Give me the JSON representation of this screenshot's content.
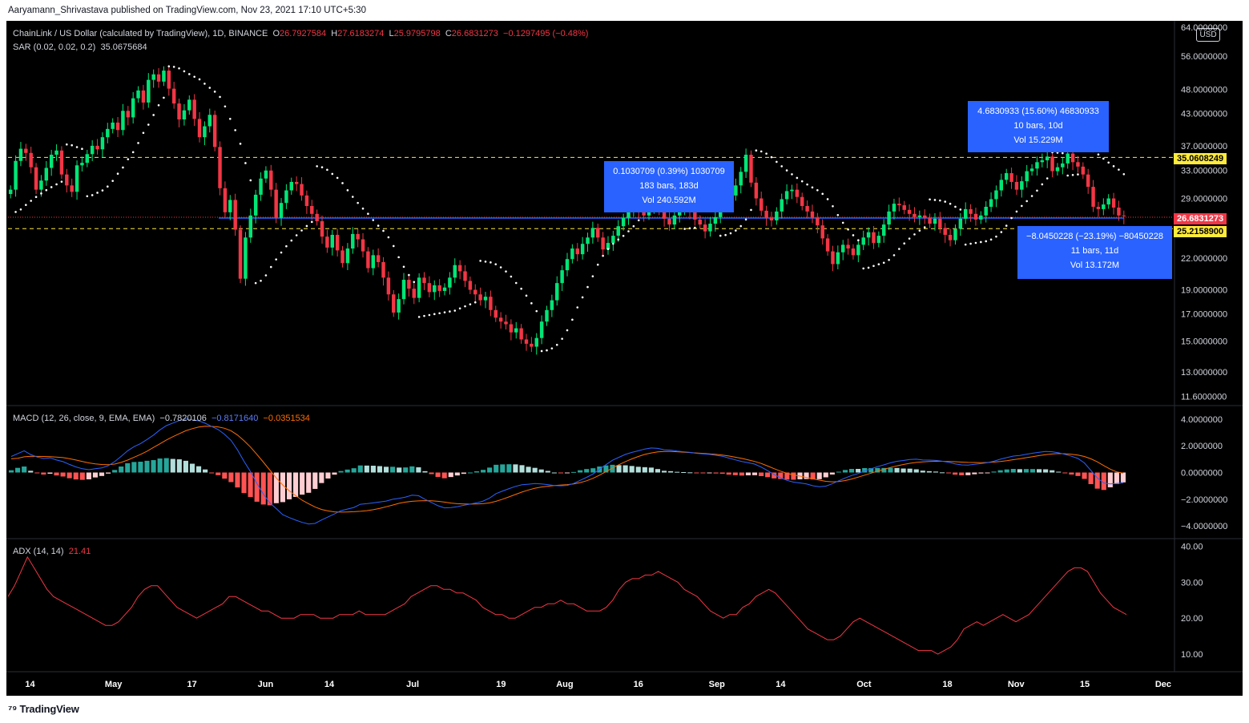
{
  "header": {
    "attribution": "Aaryamann_Shrivastava published on TradingView.com, Nov 23, 2021 17:10 UTC+5:30"
  },
  "legend": {
    "symbol": "ChainLink / US Dollar (calculated by TradingView), 1D, BINANCE",
    "open_label": "O",
    "open": "26.7927584",
    "high_label": "H",
    "high": "27.6183274",
    "low_label": "L",
    "low": "25.9795798",
    "close_label": "C",
    "close": "26.6831273",
    "change": "−0.1297495 (−0.48%)",
    "sar_label": "SAR (0.02, 0.02, 0.2)",
    "sar_value": "35.0675684",
    "macd_label": "MACD (12, 26, close, 9, EMA, EMA)",
    "macd_hist": "−0.7820106",
    "macd_line": "−0.8171640",
    "macd_signal": "−0.0351534",
    "adx_label": "ADX (14, 14)",
    "adx_value": "21.41"
  },
  "price_axis": {
    "currency": "USD",
    "ticks": [
      "64.0000000",
      "56.0000000",
      "48.0000000",
      "43.0000000",
      "37.0000000",
      "33.0000000",
      "29.0000000",
      "22.0000000",
      "19.0000000",
      "17.0000000",
      "15.0000000",
      "13.0000000",
      "11.6000000"
    ],
    "tags": [
      {
        "text": "35.0608249",
        "bg": "#ffeb3b",
        "fg": "#000000"
      },
      {
        "text": "26.6831273",
        "bg": "#f23645",
        "fg": "#ffffff"
      },
      {
        "text": "25.2158900",
        "bg": "#ffeb3b",
        "fg": "#000000"
      }
    ]
  },
  "macd_axis": {
    "ticks": [
      "4.0000000",
      "2.0000000",
      "0.0000000",
      "−2.0000000",
      "−4.0000000"
    ]
  },
  "adx_axis": {
    "ticks": [
      "40.00",
      "30.00",
      "20.00",
      "10.00"
    ]
  },
  "time_axis": {
    "labels": [
      "14",
      "May",
      "17",
      "Jun",
      "14",
      "Jul",
      "19",
      "Aug",
      "16",
      "Sep",
      "14",
      "Oct",
      "18",
      "Nov",
      "15",
      "Dec"
    ]
  },
  "measures": [
    {
      "line1": "0.1030709 (0.39%) 1030709",
      "line2": "183 bars, 183d",
      "line3": "Vol 240.592M"
    },
    {
      "line1": "4.6830933 (15.60%) 46830933",
      "line2": "10 bars, 10d",
      "line3": "Vol 15.229M"
    },
    {
      "line1": "−8.0450228 (−23.19%) −80450228",
      "line2": "11 bars, 11d",
      "line3": "Vol 13.172M"
    }
  ],
  "footer": {
    "brand": "TradingView"
  },
  "colors": {
    "up": "#26a69a",
    "candle_up": "#00e676",
    "candle_down": "#f23645",
    "sar": "#ffffff",
    "macd": "#2962ff",
    "signal": "#ff6d00",
    "adx": "#f23645",
    "hline_yellow": "#ffeb3b",
    "hline_blue": "#2962ff"
  },
  "chart_data": [
    {
      "type": "candlestick",
      "title": "ChainLink / US Dollar (calculated by TradingView), 1D, BINANCE",
      "x_start": "2021-04-10",
      "x_end": "2021-11-23",
      "closes": [
        30.2,
        34.5,
        36.5,
        35.8,
        33.5,
        30.2,
        31.5,
        33.4,
        35.5,
        36.2,
        32.4,
        30.8,
        29.9,
        33.8,
        34.2,
        35.6,
        37.0,
        36.4,
        38.5,
        40.0,
        41.2,
        39.8,
        43.5,
        42.2,
        46.1,
        47.8,
        45.2,
        50.2,
        51.5,
        49.8,
        52.4,
        48.2,
        45.0,
        41.8,
        43.6,
        45.8,
        41.9,
        38.5,
        40.5,
        42.7,
        36.8,
        30.4,
        27.2,
        28.8,
        25.1,
        20.0,
        24.2,
        26.8,
        29.5,
        31.8,
        33.0,
        30.2,
        26.5,
        28.4,
        30.1,
        31.3,
        31.0,
        29.4,
        28.0,
        27.0,
        26.1,
        24.3,
        23.1,
        24.5,
        22.8,
        21.5,
        23.0,
        24.6,
        24.0,
        22.7,
        21.0,
        22.3,
        21.6,
        20.1,
        18.6,
        17.1,
        18.2,
        19.9,
        19.1,
        18.3,
        20.1,
        19.6,
        18.8,
        19.4,
        18.9,
        19.2,
        20.1,
        21.3,
        20.7,
        19.8,
        19.0,
        18.6,
        18.1,
        18.4,
        17.3,
        16.7,
        16.4,
        16.2,
        15.6,
        15.9,
        15.1,
        14.8,
        14.6,
        15.2,
        16.4,
        17.3,
        18.1,
        19.6,
        20.8,
        21.9,
        23.0,
        22.4,
        23.5,
        24.2,
        25.3,
        24.2,
        22.9,
        23.6,
        24.4,
        25.5,
        26.5,
        27.3,
        28.5,
        27.4,
        26.8,
        27.9,
        28.3,
        27.5,
        26.4,
        25.7,
        26.8,
        27.5,
        28.1,
        27.3,
        26.3,
        25.7,
        24.9,
        25.8,
        26.6,
        27.9,
        28.8,
        29.4,
        30.8,
        32.8,
        35.5,
        31.2,
        29.0,
        27.4,
        26.5,
        26.2,
        27.3,
        28.9,
        30.0,
        30.2,
        29.2,
        28.0,
        27.3,
        26.5,
        25.6,
        24.1,
        22.7,
        21.4,
        22.6,
        23.4,
        23.0,
        22.3,
        23.4,
        24.2,
        24.8,
        23.6,
        24.4,
        25.7,
        27.3,
        28.3,
        28.1,
        27.5,
        27.0,
        26.6,
        26.8,
        26.5,
        25.8,
        26.4,
        25.3,
        24.5,
        23.9,
        25.2,
        26.4,
        27.6,
        27.0,
        26.3,
        26.8,
        27.9,
        28.9,
        30.1,
        31.6,
        32.6,
        31.3,
        30.2,
        31.4,
        32.9,
        33.3,
        34.3,
        34.6,
        35.2,
        32.9,
        33.5,
        34.1,
        35.7,
        34.3,
        33.6,
        32.4,
        30.6,
        27.9,
        27.6,
        28.2,
        29.0,
        27.8,
        26.8,
        26.7
      ]
    },
    {
      "type": "bar",
      "title": "MACD (12, 26, close, 9, EMA, EMA)",
      "series": [
        {
          "name": "MACD",
          "values": [
            1.2,
            1.42,
            1.63,
            1.35,
            1.16,
            1.05,
            1.1,
            0.94,
            0.82,
            0.61,
            0.42,
            0.28,
            0.21,
            0.28,
            0.34,
            0.51,
            0.82,
            1.21,
            1.63,
            1.94,
            2.17,
            2.48,
            2.81,
            3.2,
            3.52,
            3.71,
            3.9,
            4.01,
            3.95,
            3.88,
            3.7,
            3.45,
            3.22,
            2.86,
            2.41,
            1.69,
            0.85,
            0.07,
            -0.83,
            -1.62,
            -2.28,
            -2.71,
            -3.16,
            -3.38,
            -3.57,
            -3.74,
            -3.86,
            -3.82,
            -3.56,
            -3.33,
            -3.11,
            -2.86,
            -2.74,
            -2.62,
            -2.38,
            -2.34,
            -2.28,
            -2.21,
            -2.14,
            -2.01,
            -1.94,
            -1.84,
            -1.7,
            -1.74,
            -2.01,
            -2.24,
            -2.49,
            -2.65,
            -2.63,
            -2.56,
            -2.46,
            -2.37,
            -2.27,
            -2.14,
            -1.91,
            -1.58,
            -1.39,
            -1.21,
            -1.04,
            -0.92,
            -0.88,
            -0.83,
            -0.86,
            -0.91,
            -0.98,
            -1.0,
            -0.97,
            -0.82,
            -0.59,
            -0.36,
            -0.11,
            0.25,
            0.59,
            0.92,
            1.14,
            1.36,
            1.51,
            1.63,
            1.76,
            1.84,
            1.81,
            1.71,
            1.68,
            1.61,
            1.56,
            1.51,
            1.44,
            1.4,
            1.36,
            1.29,
            1.22,
            1.08,
            0.95,
            0.83,
            0.74,
            0.63,
            0.41,
            0.14,
            -0.15,
            -0.39,
            -0.59,
            -0.72,
            -0.78,
            -0.86,
            -0.99,
            -1.07,
            -1.02,
            -0.85,
            -0.62,
            -0.41,
            -0.22,
            -0.08,
            0.13,
            0.28,
            0.44,
            0.58,
            0.73,
            0.84,
            0.9,
            0.98,
            1.0,
            0.94,
            0.93,
            0.91,
            0.85,
            0.77,
            0.65,
            0.57,
            0.56,
            0.62,
            0.67,
            0.74,
            0.85,
            1.0,
            1.12,
            1.23,
            1.28,
            1.37,
            1.45,
            1.52,
            1.58,
            1.56,
            1.48,
            1.36,
            1.22,
            1.05,
            0.72,
            0.16,
            -0.41,
            -0.79,
            -0.86,
            -0.82,
            -0.78
          ]
        },
        {
          "name": "Signal",
          "values": [
            1.03,
            1.07,
            1.18,
            1.22,
            1.21,
            1.2,
            1.19,
            1.16,
            1.12,
            1.04,
            0.94,
            0.83,
            0.72,
            0.65,
            0.6,
            0.59,
            0.63,
            0.76,
            0.93,
            1.15,
            1.36,
            1.6,
            1.88,
            2.15,
            2.44,
            2.69,
            2.91,
            3.13,
            3.29,
            3.41,
            3.47,
            3.46,
            3.42,
            3.32,
            3.13,
            2.81,
            2.39,
            1.91,
            1.36,
            0.78,
            0.18,
            -0.41,
            -0.94,
            -1.37,
            -1.74,
            -2.08,
            -2.34,
            -2.59,
            -2.77,
            -2.88,
            -2.95,
            -2.97,
            -2.96,
            -2.94,
            -2.91,
            -2.86,
            -2.79,
            -2.69,
            -2.57,
            -2.44,
            -2.31,
            -2.22,
            -2.16,
            -2.13,
            -2.11,
            -2.12,
            -2.16,
            -2.22,
            -2.29,
            -2.34,
            -2.36,
            -2.37,
            -2.36,
            -2.34,
            -2.28,
            -2.16,
            -2.0,
            -1.83,
            -1.65,
            -1.47,
            -1.31,
            -1.18,
            -1.09,
            -1.03,
            -0.98,
            -0.94,
            -0.91,
            -0.86,
            -0.76,
            -0.62,
            -0.43,
            -0.2,
            0.06,
            0.34,
            0.59,
            0.82,
            1.02,
            1.2,
            1.36,
            1.47,
            1.55,
            1.58,
            1.58,
            1.56,
            1.53,
            1.5,
            1.47,
            1.44,
            1.4,
            1.36,
            1.31,
            1.24,
            1.15,
            1.06,
            0.95,
            0.83,
            0.68,
            0.49,
            0.29,
            0.1,
            -0.06,
            -0.18,
            -0.27,
            -0.37,
            -0.47,
            -0.57,
            -0.66,
            -0.7,
            -0.68,
            -0.6,
            -0.49,
            -0.35,
            -0.2,
            -0.05,
            0.1,
            0.24,
            0.38,
            0.5,
            0.6,
            0.69,
            0.76,
            0.8,
            0.83,
            0.84,
            0.84,
            0.83,
            0.81,
            0.78,
            0.76,
            0.75,
            0.74,
            0.75,
            0.78,
            0.83,
            0.89,
            0.96,
            1.03,
            1.11,
            1.19,
            1.27,
            1.34,
            1.39,
            1.42,
            1.41,
            1.37,
            1.31,
            1.2,
            1.03,
            0.8,
            0.52,
            0.25,
            0.04,
            -0.04
          ]
        }
      ],
      "ylim": [
        -4.6,
        4.6
      ]
    },
    {
      "type": "line",
      "title": "ADX (14, 14)",
      "series": [
        {
          "name": "ADX",
          "values": [
            26,
            29,
            33,
            37,
            34,
            31,
            28,
            26,
            25,
            24,
            23,
            22,
            21,
            20,
            19,
            18,
            18,
            19,
            21,
            23,
            26,
            28,
            29,
            29,
            27,
            25,
            23,
            22,
            21,
            20,
            21,
            22,
            23,
            24,
            26,
            26,
            25,
            24,
            23,
            22,
            22,
            21,
            20,
            20,
            20,
            21,
            21,
            21,
            20,
            20,
            20,
            21,
            21,
            21,
            22,
            21,
            21,
            21,
            21,
            22,
            23,
            24,
            26,
            27,
            28,
            29,
            29,
            28,
            28,
            27,
            27,
            26,
            25,
            23,
            22,
            21,
            21,
            20,
            20,
            21,
            22,
            23,
            23,
            24,
            24,
            25,
            24,
            24,
            23,
            22,
            22,
            22,
            23,
            25,
            28,
            30,
            31,
            31,
            32,
            32,
            33,
            32,
            31,
            30,
            28,
            27,
            26,
            24,
            22,
            21,
            20,
            21,
            21,
            23,
            24,
            26,
            27,
            28,
            27,
            25,
            23,
            21,
            19,
            17,
            16,
            15,
            14,
            14,
            15,
            17,
            19,
            20,
            19,
            18,
            17,
            16,
            15,
            14,
            13,
            12,
            11,
            11,
            11,
            10,
            11,
            12,
            14,
            17,
            18,
            19,
            18,
            19,
            20,
            21,
            20,
            19,
            20,
            21,
            23,
            25,
            27,
            29,
            31,
            33,
            34,
            34,
            33,
            30,
            27,
            25,
            23,
            22,
            21
          ]
        }
      ],
      "ylim": [
        6,
        41
      ]
    }
  ]
}
